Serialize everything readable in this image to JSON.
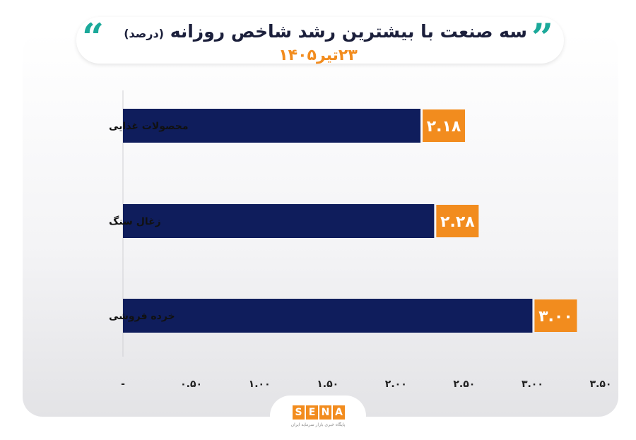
{
  "header": {
    "title": "سه صنعت با بیشترین رشد شاخص روزانه",
    "title_unit": "(درصد)",
    "subtitle": "۲۳تیر۱۴۰۵"
  },
  "chart_data": {
    "type": "bar",
    "orientation": "horizontal",
    "categories": [
      "محصولات غذایی",
      "زغال سنگ",
      "خرده فروشی"
    ],
    "values": [
      2.18,
      2.28,
      3.0
    ],
    "value_labels": [
      "۲.۱۸",
      "۲.۲۸",
      "۳.۰۰"
    ],
    "xlim": [
      0,
      3.5
    ],
    "x_ticks": [
      0,
      0.5,
      1.0,
      1.5,
      2.0,
      2.5,
      3.0,
      3.5
    ],
    "x_tick_labels": [
      "-",
      "۰.۵۰",
      "۱.۰۰",
      "۱.۵۰",
      "۲.۰۰",
      "۲.۵۰",
      "۳.۰۰",
      "۳.۵۰"
    ],
    "grid": false,
    "colors": {
      "bar": "#0f1d5c",
      "label_bg": "#f28c1e"
    }
  },
  "logo": {
    "letters": [
      "S",
      "E",
      "N",
      "A"
    ],
    "caption": "پایگاه خبری بازار سرمایه ایران"
  },
  "accent_colors": {
    "quote": "#1ba99a",
    "subtitle": "#f28c1e"
  }
}
